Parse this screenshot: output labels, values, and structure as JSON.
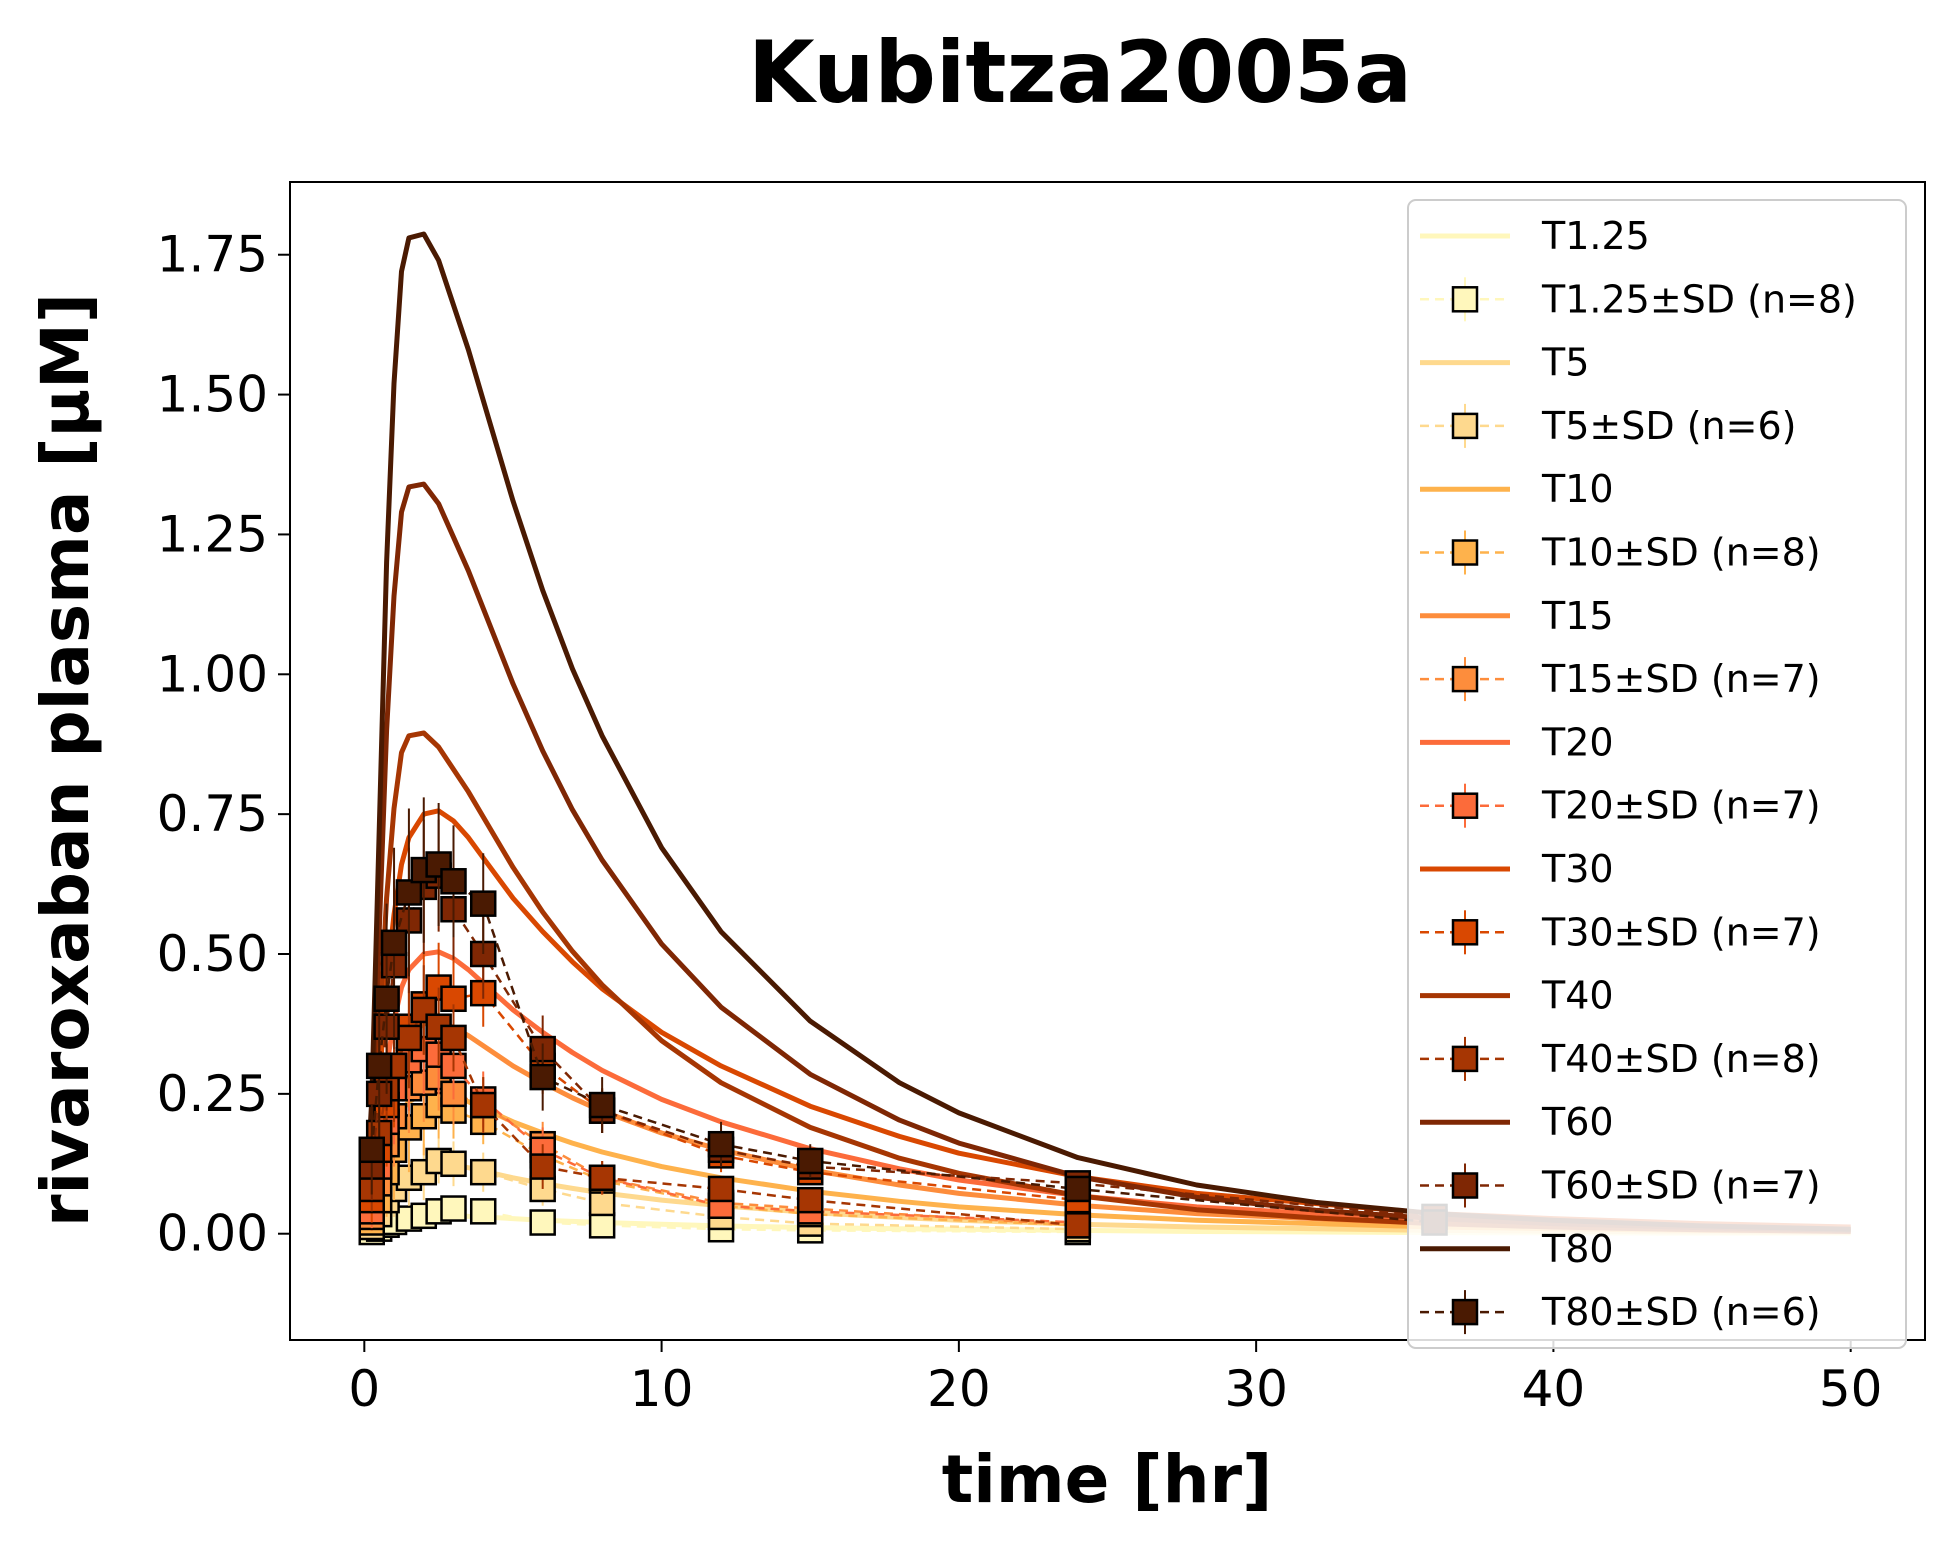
{
  "chart_data": {
    "type": "line",
    "title": "Kubitza2005a",
    "xlabel": "time [hr]",
    "ylabel": "rivaroxaban plasma [μM]",
    "xlim": [
      -2.5,
      52.5
    ],
    "ylim": [
      -0.19,
      1.88
    ],
    "xticks": [
      0,
      10,
      20,
      30,
      40,
      50
    ],
    "yticks": [
      0.0,
      0.25,
      0.5,
      0.75,
      1.0,
      1.25,
      1.5,
      1.75
    ],
    "xtick_labels": [
      "0",
      "10",
      "20",
      "30",
      "40",
      "50"
    ],
    "ytick_labels": [
      "0.00",
      "0.25",
      "0.50",
      "0.75",
      "1.00",
      "1.25",
      "1.50",
      "1.75"
    ],
    "grid": false,
    "legend_position": "top-right",
    "simulation_time": [
      0,
      0.25,
      0.5,
      0.75,
      1,
      1.25,
      1.5,
      2,
      2.5,
      3,
      3.5,
      4,
      5,
      6,
      7,
      8,
      10,
      12,
      15,
      18,
      20,
      24,
      28,
      32,
      36,
      40,
      45,
      50
    ],
    "series": [
      {
        "name": "T1.25",
        "dose": "1.25",
        "color": "#fff7bc",
        "sim": [
          0,
          0.004,
          0.012,
          0.02,
          0.026,
          0.03,
          0.032,
          0.034,
          0.034,
          0.033,
          0.031,
          0.03,
          0.027,
          0.024,
          0.022,
          0.02,
          0.017,
          0.014,
          0.011,
          0.009,
          0.008,
          0.006,
          0.004,
          0.003,
          0.002,
          0.0015,
          0.001,
          0.0007
        ],
        "obs_name": "T1.25±SD (n=8)",
        "obs": [
          [
            0.25,
            0.003
          ],
          [
            0.5,
            0.009
          ],
          [
            0.75,
            0.016
          ],
          [
            1,
            0.021
          ],
          [
            1.5,
            0.027
          ],
          [
            2,
            0.032
          ],
          [
            2.5,
            0.04
          ],
          [
            3,
            0.045
          ],
          [
            4,
            0.04
          ],
          [
            6,
            0.02
          ],
          [
            8,
            0.015
          ],
          [
            12,
            0.008
          ],
          [
            15,
            0.006
          ],
          [
            24,
            0.003
          ]
        ],
        "sd": [
          0.002,
          0.005,
          0.008,
          0.01,
          0.01,
          0.011,
          0.012,
          0.012,
          0.012,
          0.007,
          0.005,
          0.003,
          0.002,
          0.001
        ]
      },
      {
        "name": "T5",
        "dose": "5",
        "color": "#fed98e",
        "sim": [
          0,
          0.015,
          0.045,
          0.075,
          0.095,
          0.11,
          0.118,
          0.125,
          0.126,
          0.123,
          0.118,
          0.112,
          0.1,
          0.09,
          0.081,
          0.073,
          0.06,
          0.05,
          0.038,
          0.029,
          0.024,
          0.017,
          0.012,
          0.009,
          0.006,
          0.0045,
          0.003,
          0.002
        ],
        "obs_name": "T5±SD (n=6)",
        "obs": [
          [
            0.25,
            0.012
          ],
          [
            0.5,
            0.035
          ],
          [
            0.75,
            0.06
          ],
          [
            1,
            0.08
          ],
          [
            1.5,
            0.1
          ],
          [
            2,
            0.11
          ],
          [
            2.5,
            0.13
          ],
          [
            3,
            0.125
          ],
          [
            4,
            0.11
          ],
          [
            6,
            0.08
          ],
          [
            8,
            0.055
          ],
          [
            12,
            0.03
          ],
          [
            15,
            0.018
          ],
          [
            24,
            0.008
          ]
        ],
        "sd": [
          0.01,
          0.03,
          0.04,
          0.05,
          0.05,
          0.05,
          0.04,
          0.04,
          0.035,
          0.03,
          0.02,
          0.012,
          0.008,
          0.004
        ]
      },
      {
        "name": "T10",
        "dose": "10",
        "color": "#feb24c",
        "sim": [
          0,
          0.03,
          0.09,
          0.15,
          0.19,
          0.22,
          0.236,
          0.25,
          0.252,
          0.246,
          0.236,
          0.224,
          0.2,
          0.18,
          0.162,
          0.146,
          0.12,
          0.1,
          0.076,
          0.058,
          0.048,
          0.034,
          0.024,
          0.018,
          0.012,
          0.009,
          0.006,
          0.004
        ],
        "obs_name": "T10±SD (n=8)",
        "obs": [
          [
            0.25,
            0.02
          ],
          [
            0.5,
            0.06
          ],
          [
            0.75,
            0.11
          ],
          [
            1,
            0.15
          ],
          [
            1.5,
            0.19
          ],
          [
            2,
            0.21
          ],
          [
            2.5,
            0.23
          ],
          [
            3,
            0.22
          ],
          [
            4,
            0.2
          ],
          [
            6,
            0.14
          ],
          [
            8,
            0.095
          ],
          [
            12,
            0.05
          ],
          [
            15,
            0.035
          ],
          [
            24,
            0.015
          ]
        ],
        "sd": [
          0.02,
          0.06,
          0.08,
          0.09,
          0.08,
          0.07,
          0.06,
          0.05,
          0.04,
          0.03,
          0.025,
          0.015,
          0.01,
          0.005
        ]
      },
      {
        "name": "T15",
        "dose": "15",
        "color": "#fd8d3c",
        "sim": [
          0,
          0.045,
          0.135,
          0.225,
          0.285,
          0.33,
          0.354,
          0.375,
          0.378,
          0.369,
          0.354,
          0.336,
          0.3,
          0.27,
          0.243,
          0.219,
          0.18,
          0.15,
          0.114,
          0.087,
          0.072,
          0.051,
          0.036,
          0.027,
          0.018,
          0.0135,
          0.009,
          0.006
        ],
        "obs_name": "T15±SD (n=7)",
        "obs": [
          [
            0.25,
            0.03
          ],
          [
            0.5,
            0.09
          ],
          [
            0.75,
            0.16
          ],
          [
            1,
            0.21
          ],
          [
            1.5,
            0.26
          ],
          [
            2,
            0.27
          ],
          [
            2.5,
            0.28
          ],
          [
            3,
            0.25
          ],
          [
            4,
            0.23
          ],
          [
            6,
            0.16
          ],
          [
            8,
            0.1
          ],
          [
            12,
            0.055
          ],
          [
            15,
            0.045
          ],
          [
            24,
            0.015
          ]
        ],
        "sd": [
          0.025,
          0.07,
          0.09,
          0.09,
          0.08,
          0.07,
          0.06,
          0.055,
          0.05,
          0.04,
          0.03,
          0.02,
          0.015,
          0.006
        ]
      },
      {
        "name": "T20",
        "dose": "20",
        "color": "#fc6b3a",
        "sim": [
          0,
          0.06,
          0.18,
          0.3,
          0.38,
          0.44,
          0.472,
          0.5,
          0.504,
          0.492,
          0.472,
          0.448,
          0.4,
          0.36,
          0.324,
          0.292,
          0.24,
          0.2,
          0.152,
          0.116,
          0.096,
          0.068,
          0.048,
          0.036,
          0.024,
          0.018,
          0.012,
          0.008
        ],
        "obs_name": "T20±SD (n=7)",
        "obs": [
          [
            0.25,
            0.04
          ],
          [
            0.5,
            0.12
          ],
          [
            0.75,
            0.2
          ],
          [
            1,
            0.26
          ],
          [
            1.5,
            0.31
          ],
          [
            2,
            0.33
          ],
          [
            2.5,
            0.32
          ],
          [
            3,
            0.3
          ],
          [
            4,
            0.24
          ],
          [
            6,
            0.15
          ],
          [
            8,
            0.1
          ],
          [
            12,
            0.05
          ],
          [
            15,
            0.04
          ],
          [
            24,
            0.02
          ]
        ],
        "sd": [
          0.03,
          0.08,
          0.1,
          0.1,
          0.09,
          0.08,
          0.07,
          0.06,
          0.05,
          0.04,
          0.03,
          0.02,
          0.015,
          0.008
        ]
      },
      {
        "name": "T30",
        "dose": "30",
        "color": "#d94801",
        "sim": [
          0,
          0.09,
          0.27,
          0.45,
          0.57,
          0.66,
          0.708,
          0.75,
          0.756,
          0.738,
          0.708,
          0.672,
          0.6,
          0.54,
          0.486,
          0.438,
          0.36,
          0.3,
          0.228,
          0.174,
          0.144,
          0.102,
          0.072,
          0.054,
          0.036,
          0.027,
          0.018,
          0.012
        ],
        "obs_name": "T30±SD (n=7)",
        "obs": [
          [
            0.25,
            0.06
          ],
          [
            0.5,
            0.15
          ],
          [
            0.75,
            0.23
          ],
          [
            1,
            0.3
          ],
          [
            1.5,
            0.37
          ],
          [
            2,
            0.41
          ],
          [
            2.5,
            0.44
          ],
          [
            3,
            0.42
          ],
          [
            4,
            0.43
          ],
          [
            6,
            0.3
          ],
          [
            8,
            0.22
          ],
          [
            12,
            0.14
          ],
          [
            15,
            0.11
          ],
          [
            24,
            0.06
          ]
        ],
        "sd": [
          0.04,
          0.09,
          0.11,
          0.11,
          0.1,
          0.09,
          0.08,
          0.07,
          0.06,
          0.05,
          0.04,
          0.03,
          0.02,
          0.01
        ]
      },
      {
        "name": "T40",
        "dose": "40",
        "color": "#a63603",
        "sim": [
          0,
          0.12,
          0.36,
          0.6,
          0.76,
          0.86,
          0.89,
          0.895,
          0.87,
          0.83,
          0.79,
          0.745,
          0.655,
          0.575,
          0.505,
          0.445,
          0.345,
          0.27,
          0.19,
          0.135,
          0.108,
          0.068,
          0.043,
          0.028,
          0.018,
          0.012,
          0.007,
          0.004
        ],
        "obs_name": "T40±SD (n=8)",
        "obs": [
          [
            0.25,
            0.08
          ],
          [
            0.5,
            0.18
          ],
          [
            0.75,
            0.26
          ],
          [
            1,
            0.3
          ],
          [
            1.5,
            0.35
          ],
          [
            2,
            0.4
          ],
          [
            2.5,
            0.37
          ],
          [
            3,
            0.35
          ],
          [
            4,
            0.23
          ],
          [
            6,
            0.12
          ],
          [
            8,
            0.1
          ],
          [
            12,
            0.08
          ],
          [
            15,
            0.06
          ],
          [
            24,
            0.015
          ]
        ],
        "sd": [
          0.04,
          0.09,
          0.1,
          0.1,
          0.09,
          0.08,
          0.07,
          0.06,
          0.05,
          0.04,
          0.03,
          0.02,
          0.015,
          0.006
        ]
      },
      {
        "name": "T60",
        "dose": "60",
        "color": "#7f2704",
        "sim": [
          0,
          0.18,
          0.54,
          0.9,
          1.14,
          1.29,
          1.335,
          1.34,
          1.305,
          1.245,
          1.185,
          1.118,
          0.983,
          0.863,
          0.758,
          0.668,
          0.518,
          0.405,
          0.285,
          0.203,
          0.162,
          0.102,
          0.065,
          0.042,
          0.027,
          0.018,
          0.011,
          0.006
        ],
        "obs_name": "T60±SD (n=7)",
        "obs": [
          [
            0.25,
            0.12
          ],
          [
            0.5,
            0.25
          ],
          [
            0.75,
            0.37
          ],
          [
            1,
            0.48
          ],
          [
            1.5,
            0.56
          ],
          [
            2,
            0.62
          ],
          [
            2.5,
            0.64
          ],
          [
            3,
            0.58
          ],
          [
            4,
            0.5
          ],
          [
            6,
            0.33
          ],
          [
            8,
            0.22
          ],
          [
            12,
            0.15
          ],
          [
            15,
            0.12
          ],
          [
            24,
            0.09
          ],
          [
            36,
            0.03
          ]
        ],
        "sd": [
          0.06,
          0.12,
          0.15,
          0.15,
          0.13,
          0.12,
          0.1,
          0.09,
          0.08,
          0.06,
          0.04,
          0.03,
          0.02,
          0.015,
          0.008
        ]
      },
      {
        "name": "T80",
        "dose": "80",
        "color": "#4a1a02",
        "sim": [
          0,
          0.24,
          0.72,
          1.2,
          1.52,
          1.72,
          1.78,
          1.787,
          1.74,
          1.66,
          1.58,
          1.49,
          1.31,
          1.15,
          1.01,
          0.89,
          0.69,
          0.54,
          0.38,
          0.27,
          0.216,
          0.136,
          0.087,
          0.056,
          0.036,
          0.024,
          0.014,
          0.008
        ],
        "obs_name": "T80±SD (n=6)",
        "obs": [
          [
            0.25,
            0.15
          ],
          [
            0.5,
            0.3
          ],
          [
            0.75,
            0.42
          ],
          [
            1,
            0.52
          ],
          [
            1.5,
            0.61
          ],
          [
            2,
            0.65
          ],
          [
            2.5,
            0.66
          ],
          [
            3,
            0.63
          ],
          [
            4,
            0.59
          ],
          [
            6,
            0.28
          ],
          [
            8,
            0.23
          ],
          [
            12,
            0.16
          ],
          [
            15,
            0.13
          ],
          [
            24,
            0.08
          ],
          [
            36,
            0.02
          ]
        ],
        "sd": [
          0.08,
          0.14,
          0.17,
          0.17,
          0.15,
          0.13,
          0.11,
          0.1,
          0.09,
          0.06,
          0.05,
          0.04,
          0.03,
          0.02,
          0.01
        ]
      }
    ]
  }
}
